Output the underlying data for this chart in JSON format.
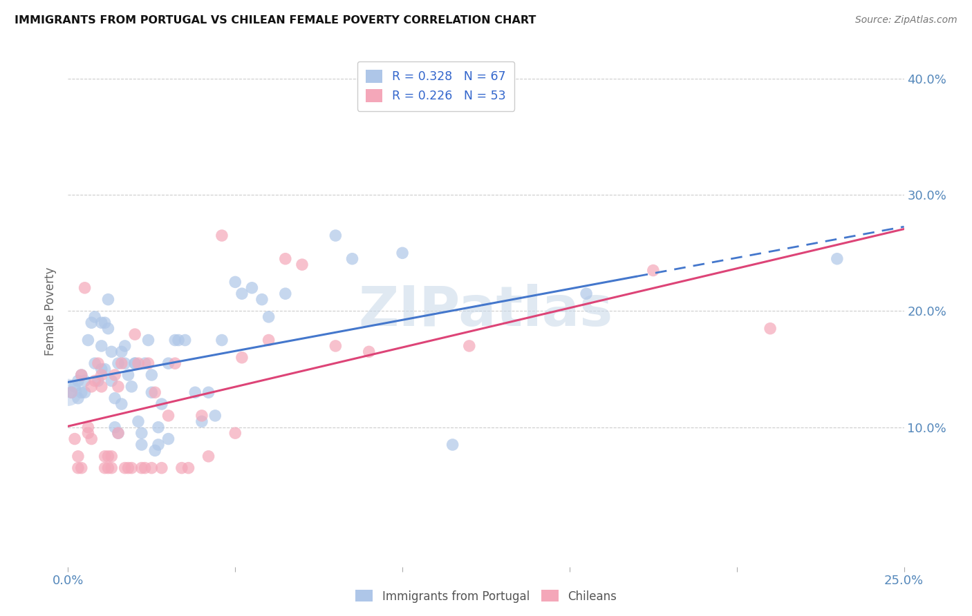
{
  "title": "IMMIGRANTS FROM PORTUGAL VS CHILEAN FEMALE POVERTY CORRELATION CHART",
  "source": "Source: ZipAtlas.com",
  "ylabel": "Female Poverty",
  "xlim": [
    0.0,
    0.25
  ],
  "ylim": [
    -0.02,
    0.42
  ],
  "x_ticks": [
    0.0,
    0.05,
    0.1,
    0.15,
    0.2,
    0.25
  ],
  "x_tick_labels": [
    "0.0%",
    "",
    "",
    "",
    "",
    "25.0%"
  ],
  "y_ticks": [
    0.1,
    0.2,
    0.3,
    0.4
  ],
  "y_tick_labels": [
    "10.0%",
    "20.0%",
    "30.0%",
    "40.0%"
  ],
  "legend_labels_bottom": [
    "Immigrants from Portugal",
    "Chileans"
  ],
  "legend_colors_bottom": [
    "#aec6e8",
    "#f4a7b9"
  ],
  "portugal_color": "#aec6e8",
  "chile_color": "#f4a7b9",
  "portugal_line_color": "#4477cc",
  "chile_line_color": "#dd4477",
  "portugal_scatter": [
    [
      0.001,
      0.13
    ],
    [
      0.002,
      0.135
    ],
    [
      0.003,
      0.125
    ],
    [
      0.003,
      0.14
    ],
    [
      0.004,
      0.13
    ],
    [
      0.004,
      0.145
    ],
    [
      0.005,
      0.13
    ],
    [
      0.005,
      0.14
    ],
    [
      0.006,
      0.175
    ],
    [
      0.007,
      0.19
    ],
    [
      0.008,
      0.155
    ],
    [
      0.008,
      0.195
    ],
    [
      0.009,
      0.14
    ],
    [
      0.01,
      0.15
    ],
    [
      0.01,
      0.17
    ],
    [
      0.01,
      0.19
    ],
    [
      0.011,
      0.19
    ],
    [
      0.011,
      0.15
    ],
    [
      0.012,
      0.21
    ],
    [
      0.012,
      0.185
    ],
    [
      0.013,
      0.14
    ],
    [
      0.013,
      0.165
    ],
    [
      0.014,
      0.125
    ],
    [
      0.014,
      0.1
    ],
    [
      0.015,
      0.095
    ],
    [
      0.015,
      0.155
    ],
    [
      0.016,
      0.12
    ],
    [
      0.016,
      0.165
    ],
    [
      0.017,
      0.155
    ],
    [
      0.017,
      0.17
    ],
    [
      0.018,
      0.145
    ],
    [
      0.019,
      0.135
    ],
    [
      0.02,
      0.155
    ],
    [
      0.02,
      0.155
    ],
    [
      0.021,
      0.105
    ],
    [
      0.022,
      0.095
    ],
    [
      0.022,
      0.085
    ],
    [
      0.023,
      0.155
    ],
    [
      0.024,
      0.175
    ],
    [
      0.025,
      0.145
    ],
    [
      0.025,
      0.13
    ],
    [
      0.026,
      0.08
    ],
    [
      0.027,
      0.085
    ],
    [
      0.027,
      0.1
    ],
    [
      0.028,
      0.12
    ],
    [
      0.03,
      0.09
    ],
    [
      0.03,
      0.155
    ],
    [
      0.032,
      0.175
    ],
    [
      0.033,
      0.175
    ],
    [
      0.035,
      0.175
    ],
    [
      0.038,
      0.13
    ],
    [
      0.04,
      0.105
    ],
    [
      0.042,
      0.13
    ],
    [
      0.044,
      0.11
    ],
    [
      0.046,
      0.175
    ],
    [
      0.05,
      0.225
    ],
    [
      0.052,
      0.215
    ],
    [
      0.055,
      0.22
    ],
    [
      0.058,
      0.21
    ],
    [
      0.06,
      0.195
    ],
    [
      0.065,
      0.215
    ],
    [
      0.08,
      0.265
    ],
    [
      0.085,
      0.245
    ],
    [
      0.1,
      0.25
    ],
    [
      0.115,
      0.085
    ],
    [
      0.155,
      0.215
    ],
    [
      0.23,
      0.245
    ]
  ],
  "chile_scatter": [
    [
      0.001,
      0.13
    ],
    [
      0.002,
      0.09
    ],
    [
      0.003,
      0.075
    ],
    [
      0.003,
      0.065
    ],
    [
      0.004,
      0.065
    ],
    [
      0.004,
      0.145
    ],
    [
      0.005,
      0.22
    ],
    [
      0.006,
      0.1
    ],
    [
      0.006,
      0.095
    ],
    [
      0.007,
      0.09
    ],
    [
      0.007,
      0.135
    ],
    [
      0.008,
      0.14
    ],
    [
      0.009,
      0.155
    ],
    [
      0.01,
      0.135
    ],
    [
      0.01,
      0.145
    ],
    [
      0.011,
      0.065
    ],
    [
      0.011,
      0.075
    ],
    [
      0.012,
      0.075
    ],
    [
      0.012,
      0.065
    ],
    [
      0.013,
      0.075
    ],
    [
      0.013,
      0.065
    ],
    [
      0.014,
      0.145
    ],
    [
      0.015,
      0.095
    ],
    [
      0.015,
      0.135
    ],
    [
      0.016,
      0.155
    ],
    [
      0.017,
      0.065
    ],
    [
      0.018,
      0.065
    ],
    [
      0.019,
      0.065
    ],
    [
      0.02,
      0.18
    ],
    [
      0.021,
      0.155
    ],
    [
      0.022,
      0.065
    ],
    [
      0.023,
      0.065
    ],
    [
      0.024,
      0.155
    ],
    [
      0.025,
      0.065
    ],
    [
      0.026,
      0.13
    ],
    [
      0.028,
      0.065
    ],
    [
      0.03,
      0.11
    ],
    [
      0.032,
      0.155
    ],
    [
      0.034,
      0.065
    ],
    [
      0.036,
      0.065
    ],
    [
      0.04,
      0.11
    ],
    [
      0.042,
      0.075
    ],
    [
      0.046,
      0.265
    ],
    [
      0.05,
      0.095
    ],
    [
      0.052,
      0.16
    ],
    [
      0.06,
      0.175
    ],
    [
      0.065,
      0.245
    ],
    [
      0.07,
      0.24
    ],
    [
      0.08,
      0.17
    ],
    [
      0.09,
      0.165
    ],
    [
      0.12,
      0.17
    ],
    [
      0.175,
      0.235
    ],
    [
      0.21,
      0.185
    ]
  ],
  "background_color": "#ffffff",
  "grid_color": "#cccccc",
  "title_color": "#111111",
  "tick_label_color": "#5588bb",
  "watermark_text": "ZIPatlas",
  "watermark_color": "#c8d8e8",
  "portugal_R": "0.328",
  "portugal_N": "67",
  "chile_R": "0.226",
  "chile_N": "53"
}
